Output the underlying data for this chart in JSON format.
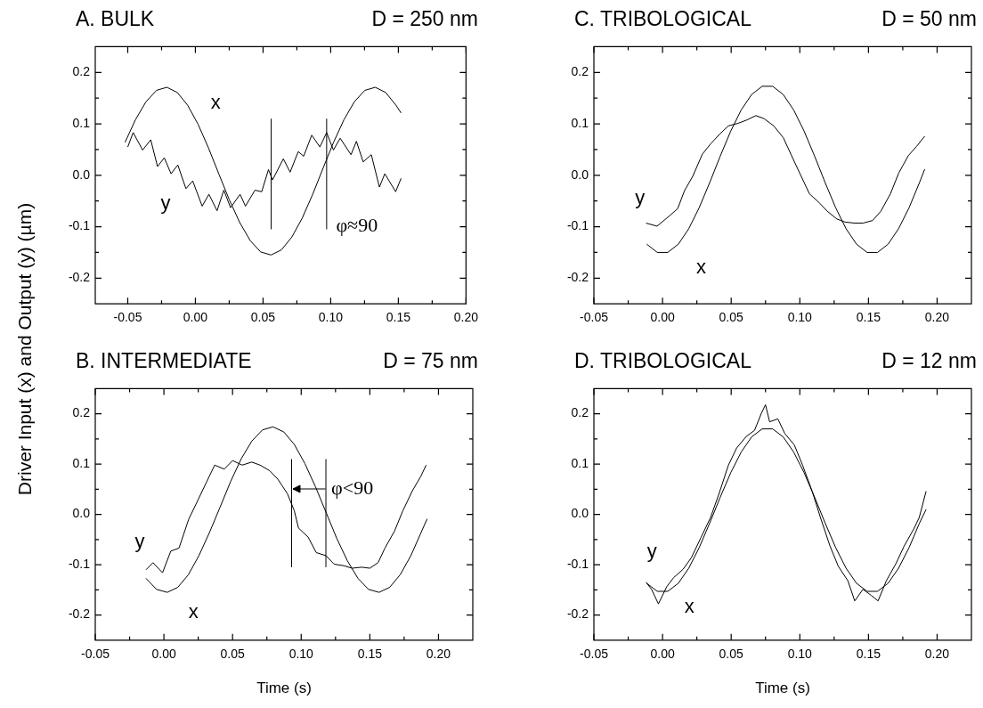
{
  "chart_data": [
    {
      "type": "line",
      "title": "A. BULK",
      "subtitle": "D = 250 nm",
      "ylabel": "Driver Input (x)  and Output (y) (µm)",
      "xlim": [
        -0.074,
        0.2
      ],
      "ylim": [
        -0.25,
        0.25
      ],
      "xticks": [
        {
          "value": -0.05,
          "label": "-0.05"
        },
        {
          "value": -0.025,
          "label": null
        },
        {
          "value": 0,
          "label": "0.00"
        },
        {
          "value": 0.025,
          "label": null
        },
        {
          "value": 0.05,
          "label": "0.05"
        },
        {
          "value": 0.075,
          "label": null
        },
        {
          "value": 0.1,
          "label": "0.10"
        },
        {
          "value": 0.125,
          "label": null
        },
        {
          "value": 0.15,
          "label": "0.15"
        },
        {
          "value": 0.175,
          "label": null
        },
        {
          "value": 0.2,
          "label": "0.20"
        }
      ],
      "yticks": [
        -0.2,
        {
          "value": -0.15,
          "label": null
        },
        -0.1,
        {
          "value": -0.05,
          "label": null
        },
        {
          "value": 0,
          "label": "0.0"
        },
        {
          "value": 0.05,
          "label": null
        },
        0.1,
        {
          "value": 0.15,
          "label": null
        },
        0.2
      ],
      "series": [
        {
          "name": "x",
          "color": "#000000",
          "x": [
            -0.052,
            -0.0443,
            -0.0365,
            -0.0288,
            -0.0211,
            -0.0134,
            -0.0057,
            0.002,
            0.0097,
            0.0174,
            0.0251,
            0.0328,
            0.0405,
            0.0482,
            0.0559,
            0.0636,
            0.0713,
            0.079,
            0.0867,
            0.0944,
            0.1021,
            0.1098,
            0.1175,
            0.1252,
            0.1329,
            0.1406,
            0.1483,
            0.152
          ],
          "values": [
            0.064,
            0.108,
            0.143,
            0.165,
            0.171,
            0.161,
            0.136,
            0.099,
            0.053,
            0.002,
            -0.048,
            -0.092,
            -0.127,
            -0.149,
            -0.155,
            -0.145,
            -0.12,
            -0.083,
            -0.037,
            0.014,
            0.064,
            0.108,
            0.143,
            0.165,
            0.171,
            0.161,
            0.136,
            0.121
          ]
        },
        {
          "name": "y",
          "color": "#000000",
          "x": [
            -0.05,
            -0.046,
            -0.039,
            -0.033,
            -0.028,
            -0.023,
            -0.018,
            -0.013,
            -0.007,
            -0.002,
            0.005,
            0.01,
            0.016,
            0.021,
            0.026,
            0.033,
            0.037,
            0.044,
            0.049,
            0.054,
            0.057,
            0.065,
            0.07,
            0.076,
            0.08,
            0.086,
            0.092,
            0.097,
            0.102,
            0.107,
            0.115,
            0.119,
            0.124,
            0.13,
            0.136,
            0.14,
            0.148,
            0.152
          ],
          "values": [
            0.055,
            0.083,
            0.049,
            0.069,
            0.017,
            0.034,
            0.003,
            0.02,
            -0.026,
            -0.011,
            -0.06,
            -0.037,
            -0.069,
            -0.029,
            -0.063,
            -0.037,
            -0.06,
            -0.029,
            -0.032,
            0.011,
            -0.009,
            0.032,
            0.006,
            0.046,
            0.037,
            0.078,
            0.055,
            0.083,
            0.049,
            0.072,
            0.04,
            0.066,
            0.026,
            0.04,
            -0.023,
            0.003,
            -0.032,
            -0.006
          ]
        }
      ],
      "ref_lines": [
        {
          "axis": "x",
          "value": 0.056,
          "color": "#000000"
        },
        {
          "axis": "x",
          "value": 0.097,
          "color": "#000000"
        }
      ],
      "annotations": [
        {
          "text": "φ≈90",
          "x": 0.1,
          "y": -0.1
        }
      ]
    },
    {
      "type": "line",
      "title": "C. TRIBOLOGICAL",
      "subtitle": "D = 50 nm",
      "xlim": [
        -0.05,
        0.225
      ],
      "ylim": [
        -0.25,
        0.25
      ],
      "xticks": [
        {
          "value": -0.05,
          "label": "-0.05"
        },
        {
          "value": -0.025,
          "label": null
        },
        {
          "value": 0,
          "label": "0.00"
        },
        {
          "value": 0.025,
          "label": null
        },
        {
          "value": 0.05,
          "label": "0.05"
        },
        {
          "value": 0.075,
          "label": null
        },
        {
          "value": 0.1,
          "label": "0.10"
        },
        {
          "value": 0.125,
          "label": null
        },
        {
          "value": 0.15,
          "label": "0.15"
        },
        {
          "value": 0.175,
          "label": null
        },
        {
          "value": 0.2,
          "label": "0.20"
        }
      ],
      "yticks": [
        -0.2,
        {
          "value": -0.15,
          "label": null
        },
        -0.1,
        {
          "value": -0.05,
          "label": null
        },
        {
          "value": 0,
          "label": "0.0"
        },
        {
          "value": 0.05,
          "label": null
        },
        0.1,
        {
          "value": 0.15,
          "label": null
        },
        0.2
      ],
      "series": [
        {
          "name": "x",
          "color": "#000000",
          "x": [
            -0.0115,
            -0.0038,
            0.0038,
            0.0115,
            0.0191,
            0.0267,
            0.0344,
            0.042,
            0.0497,
            0.0573,
            0.0649,
            0.0726,
            0.0802,
            0.0879,
            0.0955,
            0.1031,
            0.1108,
            0.1184,
            0.1261,
            0.1337,
            0.1413,
            0.149,
            0.1566,
            0.1643,
            0.1719,
            0.1796,
            0.1872,
            0.191
          ],
          "values": [
            -0.134,
            -0.15,
            -0.15,
            -0.134,
            -0.104,
            -0.063,
            -0.014,
            0.037,
            0.086,
            0.127,
            0.157,
            0.173,
            0.173,
            0.157,
            0.127,
            0.086,
            0.037,
            -0.014,
            -0.063,
            -0.104,
            -0.134,
            -0.15,
            -0.15,
            -0.134,
            -0.104,
            -0.063,
            -0.014,
            0.012
          ]
        },
        {
          "name": "y",
          "color": "#000000",
          "x": [
            -0.012,
            -0.004,
            0.005,
            0.011,
            0.016,
            0.022,
            0.029,
            0.035,
            0.042,
            0.048,
            0.055,
            0.061,
            0.068,
            0.074,
            0.081,
            0.088,
            0.094,
            0.101,
            0.107,
            0.114,
            0.12,
            0.127,
            0.133,
            0.14,
            0.146,
            0.153,
            0.159,
            0.166,
            0.172,
            0.179,
            0.185,
            0.191
          ],
          "values": [
            -0.093,
            -0.099,
            -0.079,
            -0.065,
            -0.03,
            -0.002,
            0.041,
            0.061,
            0.081,
            0.096,
            0.101,
            0.107,
            0.116,
            0.11,
            0.096,
            0.073,
            0.038,
            -0.002,
            -0.036,
            -0.053,
            -0.07,
            -0.085,
            -0.091,
            -0.093,
            -0.093,
            -0.088,
            -0.07,
            -0.036,
            0.004,
            0.038,
            0.056,
            0.076
          ]
        }
      ]
    },
    {
      "type": "line",
      "title": "B. INTERMEDIATE",
      "subtitle": "D = 75 nm",
      "xlabel": "Time (s)",
      "xlim": [
        -0.05,
        0.225
      ],
      "ylim": [
        -0.25,
        0.25
      ],
      "xticks": [
        {
          "value": -0.05,
          "label": "-0.05"
        },
        {
          "value": -0.025,
          "label": null
        },
        {
          "value": 0,
          "label": "0.00"
        },
        {
          "value": 0.025,
          "label": null
        },
        {
          "value": 0.05,
          "label": "0.05"
        },
        {
          "value": 0.075,
          "label": null
        },
        {
          "value": 0.1,
          "label": "0.10"
        },
        {
          "value": 0.125,
          "label": null
        },
        {
          "value": 0.15,
          "label": "0.15"
        },
        {
          "value": 0.175,
          "label": null
        },
        {
          "value": 0.2,
          "label": "0.20"
        }
      ],
      "yticks": [
        -0.2,
        {
          "value": -0.15,
          "label": null
        },
        -0.1,
        {
          "value": -0.05,
          "label": null
        },
        {
          "value": 0,
          "label": "0.0"
        },
        {
          "value": 0.05,
          "label": null
        },
        0.1,
        {
          "value": 0.15,
          "label": null
        },
        0.2
      ],
      "series": [
        {
          "name": "x",
          "color": "#000000",
          "x": [
            -0.0131,
            -0.0054,
            0.0024,
            0.0101,
            0.0178,
            0.0255,
            0.0332,
            0.041,
            0.0487,
            0.0564,
            0.0641,
            0.0718,
            0.0795,
            0.0873,
            0.095,
            0.1027,
            0.1104,
            0.1181,
            0.1258,
            0.1336,
            0.1413,
            0.149,
            0.1567,
            0.1644,
            0.1721,
            0.1799,
            0.1917
          ],
          "values": [
            -0.127,
            -0.149,
            -0.155,
            -0.145,
            -0.12,
            -0.082,
            -0.036,
            0.015,
            0.066,
            0.111,
            0.146,
            0.168,
            0.174,
            0.164,
            0.139,
            0.101,
            0.055,
            0.004,
            -0.047,
            -0.092,
            -0.127,
            -0.149,
            -0.155,
            -0.145,
            -0.12,
            -0.082,
            -0.009
          ]
        },
        {
          "name": "y",
          "color": "#000000",
          "x": [
            -0.013,
            -0.008,
            -0.001,
            0.005,
            0.011,
            0.018,
            0.024,
            0.031,
            0.037,
            0.044,
            0.05,
            0.057,
            0.064,
            0.07,
            0.077,
            0.083,
            0.09,
            0.095,
            0.098,
            0.105,
            0.111,
            0.118,
            0.124,
            0.131,
            0.137,
            0.144,
            0.15,
            0.156,
            0.161,
            0.168,
            0.174,
            0.181,
            0.187,
            0.191
          ],
          "values": [
            -0.11,
            -0.096,
            -0.116,
            -0.073,
            -0.067,
            -0.01,
            0.024,
            0.064,
            0.098,
            0.09,
            0.107,
            0.098,
            0.104,
            0.098,
            0.087,
            0.07,
            0.041,
            0.007,
            -0.027,
            -0.045,
            -0.076,
            -0.082,
            -0.099,
            -0.102,
            -0.107,
            -0.105,
            -0.107,
            -0.096,
            -0.067,
            -0.033,
            0.007,
            0.047,
            0.075,
            0.098
          ]
        }
      ],
      "ref_lines": [
        {
          "axis": "x",
          "value": 0.093,
          "color": "#000000"
        },
        {
          "axis": "x",
          "value": 0.118,
          "color": "#000000"
        }
      ],
      "annotations": [
        {
          "text": "φ<90",
          "x": 0.118,
          "y": 0.05
        }
      ]
    },
    {
      "type": "line",
      "title": "D. TRIBOLOGICAL",
      "subtitle": "D = 12 nm",
      "xlabel": "Time (s)",
      "xlim": [
        -0.05,
        0.225
      ],
      "ylim": [
        -0.25,
        0.25
      ],
      "xticks": [
        {
          "value": -0.05,
          "label": "-0.05"
        },
        {
          "value": -0.025,
          "label": null
        },
        {
          "value": 0,
          "label": "0.00"
        },
        {
          "value": 0.025,
          "label": null
        },
        {
          "value": 0.05,
          "label": "0.05"
        },
        {
          "value": 0.075,
          "label": null
        },
        {
          "value": 0.1,
          "label": "0.10"
        },
        {
          "value": 0.125,
          "label": null
        },
        {
          "value": 0.15,
          "label": "0.15"
        },
        {
          "value": 0.175,
          "label": null
        },
        {
          "value": 0.2,
          "label": "0.20"
        }
      ],
      "yticks": [
        -0.2,
        {
          "value": -0.15,
          "label": null
        },
        -0.1,
        {
          "value": -0.05,
          "label": null
        },
        {
          "value": 0,
          "label": "0.0"
        },
        {
          "value": 0.05,
          "label": null
        },
        0.1,
        {
          "value": 0.15,
          "label": null
        },
        0.2
      ],
      "series": [
        {
          "name": "x",
          "color": "#000000",
          "x": [
            -0.0115,
            -0.0038,
            0.0038,
            0.0115,
            0.0191,
            0.0267,
            0.0344,
            0.042,
            0.0497,
            0.0573,
            0.0649,
            0.0726,
            0.0802,
            0.0879,
            0.0955,
            0.1031,
            0.1108,
            0.1184,
            0.1261,
            0.1337,
            0.1413,
            0.149,
            0.1566,
            0.1643,
            0.1719,
            0.1796,
            0.1872,
            0.192
          ],
          "values": [
            -0.137,
            -0.153,
            -0.153,
            -0.137,
            -0.107,
            -0.066,
            -0.017,
            0.034,
            0.083,
            0.124,
            0.154,
            0.17,
            0.17,
            0.154,
            0.124,
            0.083,
            0.034,
            -0.017,
            -0.066,
            -0.107,
            -0.137,
            -0.153,
            -0.153,
            -0.137,
            -0.107,
            -0.066,
            -0.017,
            0.01
          ]
        },
        {
          "name": "y",
          "color": "#000000",
          "x": [
            -0.012,
            -0.008,
            -0.003,
            0.003,
            0.008,
            0.015,
            0.021,
            0.028,
            0.035,
            0.041,
            0.048,
            0.054,
            0.061,
            0.067,
            0.072,
            0.075,
            0.078,
            0.084,
            0.089,
            0.096,
            0.102,
            0.109,
            0.115,
            0.122,
            0.128,
            0.135,
            0.14,
            0.146,
            0.152,
            0.157,
            0.163,
            0.17,
            0.176,
            0.183,
            0.187,
            0.192
          ],
          "values": [
            -0.135,
            -0.149,
            -0.178,
            -0.144,
            -0.126,
            -0.109,
            -0.086,
            -0.046,
            -0.006,
            0.04,
            0.098,
            0.132,
            0.155,
            0.167,
            0.201,
            0.218,
            0.184,
            0.19,
            0.161,
            0.138,
            0.098,
            0.046,
            -0.006,
            -0.063,
            -0.103,
            -0.132,
            -0.172,
            -0.149,
            -0.161,
            -0.172,
            -0.132,
            -0.098,
            -0.063,
            -0.029,
            -0.006,
            0.046
          ]
        }
      ]
    }
  ]
}
